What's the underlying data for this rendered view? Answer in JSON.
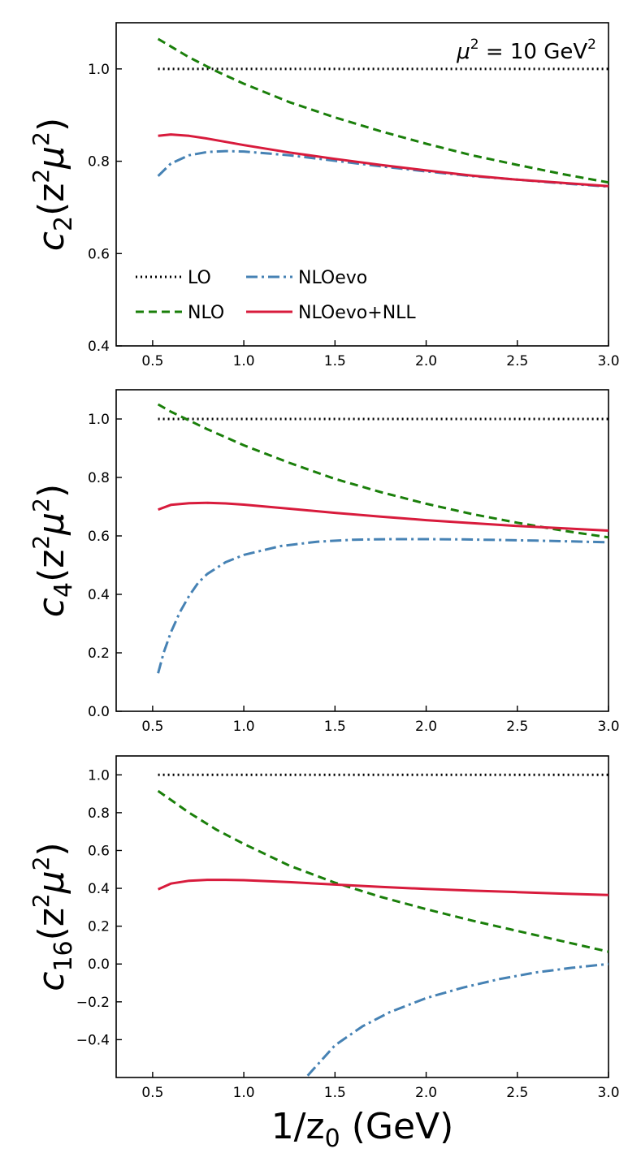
{
  "chart_data": [
    {
      "type": "line",
      "ylabel_base": "c",
      "ylabel_sub": "2",
      "ylabel_arg_open": "(z",
      "ylabel_arg_sup1": "2",
      "ylabel_arg_mid": "μ",
      "ylabel_arg_sup2": "2",
      "ylabel_arg_close": ")",
      "xlim": [
        0.3,
        3.0
      ],
      "ylim": [
        0.4,
        1.1
      ],
      "xticks": [
        "0.5",
        "1.0",
        "1.5",
        "2.0",
        "2.5",
        "3.0"
      ],
      "xtick_values": [
        0.5,
        1.0,
        1.5,
        2.0,
        2.5,
        3.0
      ],
      "yticks": [
        "0.4",
        "0.6",
        "0.8",
        "1.0"
      ],
      "ytick_values": [
        0.4,
        0.6,
        0.8,
        1.0
      ],
      "annotation": {
        "base": "μ",
        "sup1": "2",
        "mid": " = 10 GeV",
        "sup2": "2"
      },
      "legend": [
        {
          "label": "LO",
          "series": "LO"
        },
        {
          "label": "NLOevo",
          "series": "NLOevo"
        },
        {
          "label": "NLO",
          "series": "NLO"
        },
        {
          "label": "NLOevo+NLL",
          "series": "NLOevo+NLL"
        }
      ],
      "series": [
        {
          "name": "LO",
          "x": [
            0.53,
            3.0
          ],
          "y": [
            1.0,
            1.0
          ]
        },
        {
          "name": "NLO",
          "x": [
            0.53,
            0.7,
            0.85,
            1.0,
            1.25,
            1.5,
            1.75,
            2.0,
            2.25,
            2.5,
            2.75,
            3.0
          ],
          "y": [
            1.065,
            1.025,
            0.995,
            0.968,
            0.928,
            0.895,
            0.865,
            0.838,
            0.813,
            0.792,
            0.772,
            0.754
          ]
        },
        {
          "name": "NLOevo",
          "x": [
            0.53,
            0.6,
            0.7,
            0.8,
            0.9,
            1.0,
            1.25,
            1.5,
            1.75,
            2.0,
            2.25,
            2.5,
            2.75,
            3.0
          ],
          "y": [
            0.768,
            0.795,
            0.813,
            0.82,
            0.822,
            0.821,
            0.813,
            0.801,
            0.789,
            0.778,
            0.768,
            0.76,
            0.752,
            0.745
          ]
        },
        {
          "name": "NLOevo+NLL",
          "x": [
            0.53,
            0.6,
            0.7,
            0.8,
            0.9,
            1.0,
            1.25,
            1.5,
            1.75,
            2.0,
            2.25,
            2.5,
            2.75,
            3.0
          ],
          "y": [
            0.855,
            0.858,
            0.855,
            0.849,
            0.842,
            0.835,
            0.819,
            0.805,
            0.792,
            0.78,
            0.769,
            0.76,
            0.753,
            0.746
          ]
        }
      ]
    },
    {
      "type": "line",
      "ylabel_base": "c",
      "ylabel_sub": "4",
      "ylabel_arg_open": "(z",
      "ylabel_arg_sup1": "2",
      "ylabel_arg_mid": "μ",
      "ylabel_arg_sup2": "2",
      "ylabel_arg_close": ")",
      "xlim": [
        0.3,
        3.0
      ],
      "ylim": [
        0.0,
        1.1
      ],
      "xticks": [
        "0.5",
        "1.0",
        "1.5",
        "2.0",
        "2.5",
        "3.0"
      ],
      "xtick_values": [
        0.5,
        1.0,
        1.5,
        2.0,
        2.5,
        3.0
      ],
      "yticks": [
        "0.0",
        "0.2",
        "0.4",
        "0.6",
        "0.8",
        "1.0"
      ],
      "ytick_values": [
        0.0,
        0.2,
        0.4,
        0.6,
        0.8,
        1.0
      ],
      "series": [
        {
          "name": "LO",
          "x": [
            0.53,
            3.0
          ],
          "y": [
            1.0,
            1.0
          ]
        },
        {
          "name": "NLO",
          "x": [
            0.53,
            0.6,
            0.7,
            0.8,
            1.0,
            1.25,
            1.5,
            1.75,
            2.0,
            2.25,
            2.5,
            2.75,
            3.0
          ],
          "y": [
            1.05,
            1.025,
            0.995,
            0.965,
            0.91,
            0.85,
            0.795,
            0.75,
            0.71,
            0.675,
            0.645,
            0.618,
            0.595
          ]
        },
        {
          "name": "NLOevo",
          "x": [
            0.53,
            0.56,
            0.6,
            0.65,
            0.7,
            0.75,
            0.8,
            0.9,
            1.0,
            1.2,
            1.4,
            1.6,
            1.8,
            2.0,
            2.2,
            2.4,
            2.6,
            2.8,
            3.0
          ],
          "y": [
            0.13,
            0.2,
            0.27,
            0.34,
            0.395,
            0.44,
            0.47,
            0.51,
            0.535,
            0.565,
            0.58,
            0.587,
            0.589,
            0.589,
            0.588,
            0.586,
            0.584,
            0.581,
            0.578
          ]
        },
        {
          "name": "NLOevo+NLL",
          "x": [
            0.53,
            0.6,
            0.7,
            0.8,
            0.9,
            1.0,
            1.25,
            1.5,
            1.75,
            2.0,
            2.25,
            2.5,
            2.75,
            3.0
          ],
          "y": [
            0.69,
            0.706,
            0.712,
            0.713,
            0.711,
            0.707,
            0.693,
            0.679,
            0.666,
            0.654,
            0.644,
            0.634,
            0.626,
            0.618
          ]
        }
      ]
    },
    {
      "type": "line",
      "ylabel_base": "c",
      "ylabel_sub": "16",
      "ylabel_arg_open": "(z",
      "ylabel_arg_sup1": "2",
      "ylabel_arg_mid": "μ",
      "ylabel_arg_sup2": "2",
      "ylabel_arg_close": ")",
      "xlabel": "1/z",
      "xlabel_sub": "0",
      "xlabel_unit": " (GeV)",
      "xlim": [
        0.3,
        3.0
      ],
      "ylim": [
        -0.6,
        1.1
      ],
      "xticks": [
        "0.5",
        "1.0",
        "1.5",
        "2.0",
        "2.5",
        "3.0"
      ],
      "xtick_values": [
        0.5,
        1.0,
        1.5,
        2.0,
        2.5,
        3.0
      ],
      "yticks": [
        "−0.4",
        "−0.2",
        "0.0",
        "0.2",
        "0.4",
        "0.6",
        "0.8",
        "1.0"
      ],
      "ytick_values": [
        -0.4,
        -0.2,
        0.0,
        0.2,
        0.4,
        0.6,
        0.8,
        1.0
      ],
      "series": [
        {
          "name": "LO",
          "x": [
            0.53,
            3.0
          ],
          "y": [
            1.0,
            1.0
          ]
        },
        {
          "name": "NLO",
          "x": [
            0.53,
            0.7,
            0.85,
            1.0,
            1.25,
            1.5,
            1.75,
            2.0,
            2.25,
            2.5,
            2.75,
            3.0
          ],
          "y": [
            0.915,
            0.8,
            0.71,
            0.635,
            0.52,
            0.43,
            0.355,
            0.29,
            0.23,
            0.175,
            0.12,
            0.065
          ]
        },
        {
          "name": "NLOevo",
          "x": [
            1.35,
            1.5,
            1.65,
            1.8,
            2.0,
            2.2,
            2.4,
            2.6,
            2.8,
            3.0
          ],
          "y": [
            -0.59,
            -0.43,
            -0.33,
            -0.255,
            -0.18,
            -0.125,
            -0.08,
            -0.045,
            -0.02,
            0.0
          ]
        },
        {
          "name": "NLOevo+NLL",
          "x": [
            0.53,
            0.6,
            0.7,
            0.8,
            0.9,
            1.0,
            1.25,
            1.5,
            1.75,
            2.0,
            2.25,
            2.5,
            2.75,
            3.0
          ],
          "y": [
            0.395,
            0.425,
            0.44,
            0.445,
            0.445,
            0.443,
            0.433,
            0.42,
            0.408,
            0.397,
            0.388,
            0.38,
            0.372,
            0.365
          ]
        }
      ]
    }
  ],
  "styles": {
    "LO": {
      "color": "#000000",
      "dash": "2,4",
      "width": 3
    },
    "NLO": {
      "color": "#1a7f0a",
      "dash": "10,6",
      "width": 3
    },
    "NLOevo": {
      "color": "#4682b4",
      "dash": "14,5,3,5",
      "width": 3
    },
    "NLOevo+NLL": {
      "color": "#d81b3c",
      "dash": "",
      "width": 3
    }
  }
}
